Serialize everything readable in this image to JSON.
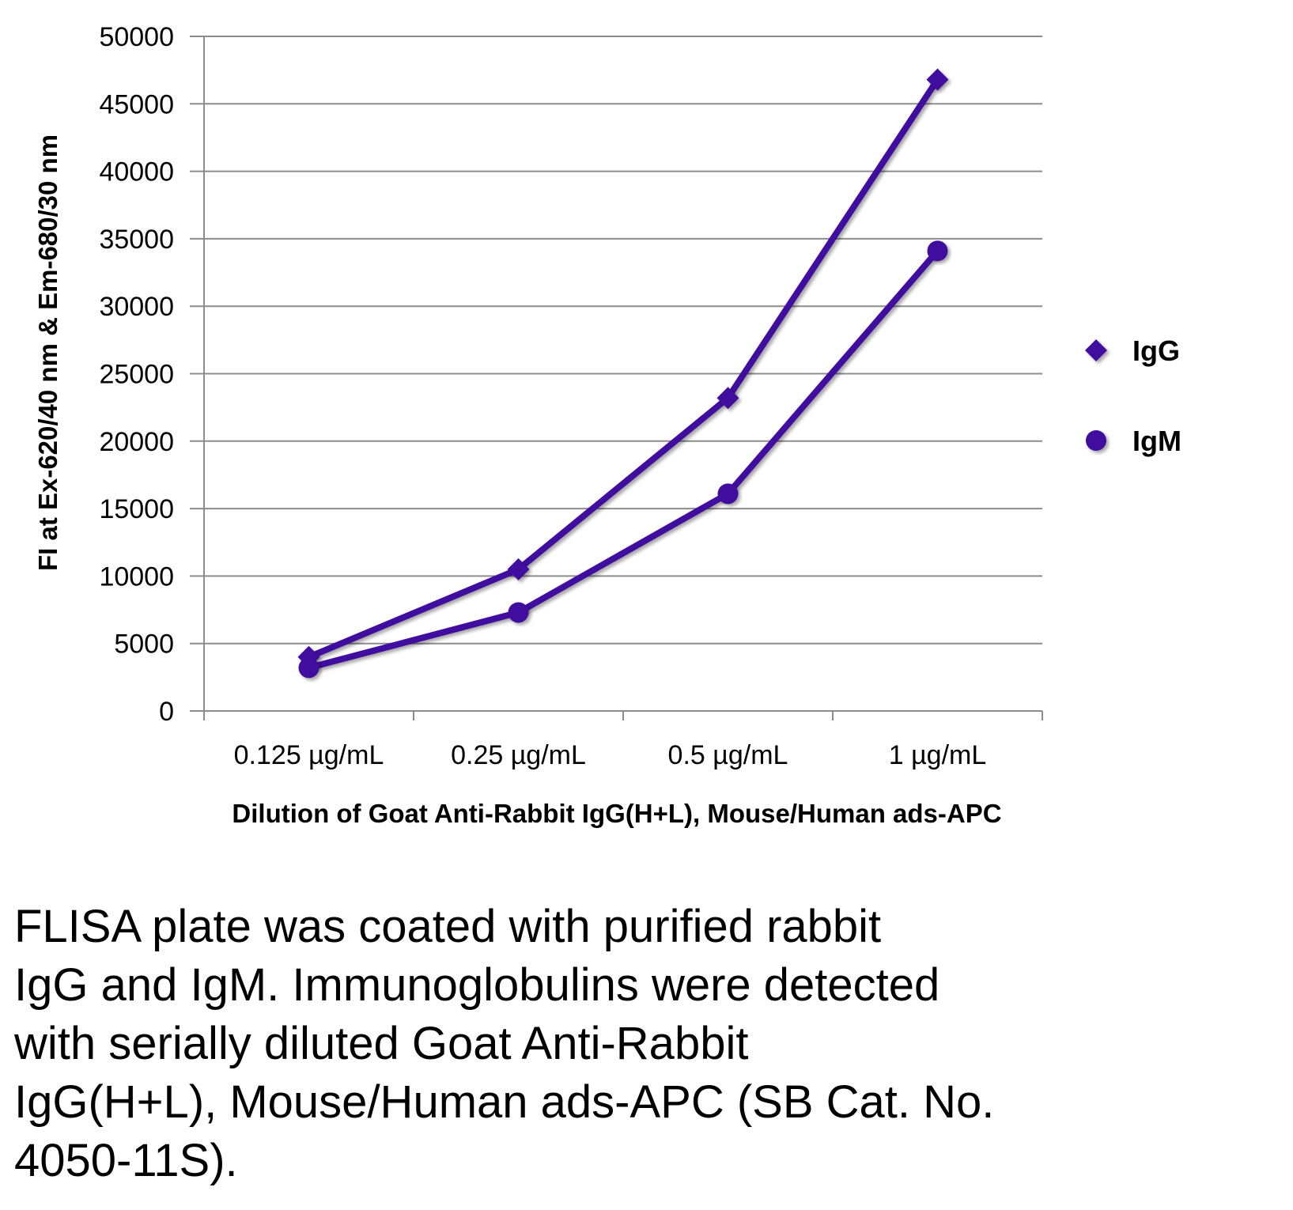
{
  "chart_data": {
    "type": "line",
    "categories": [
      "0.125 µg/mL",
      "0.25 µg/mL",
      "0.5 µg/mL",
      "1 µg/mL"
    ],
    "series": [
      {
        "name": "IgG",
        "marker": "diamond",
        "values": [
          4000,
          10500,
          23200,
          46800
        ]
      },
      {
        "name": "IgM",
        "marker": "circle",
        "values": [
          3200,
          7300,
          16100,
          34100
        ]
      }
    ],
    "xlabel": "Dilution of Goat Anti-Rabbit IgG(H+L), Mouse/Human ads-APC",
    "ylabel": "FI at Ex-620/40 nm & Em-680/30 nm",
    "ylim": [
      0,
      50000
    ],
    "yticks": [
      "0",
      "5000",
      "10000",
      "15000",
      "20000",
      "25000",
      "30000",
      "35000",
      "40000",
      "45000",
      "50000"
    ],
    "grid": true,
    "legend_position": "right",
    "line_color": "#3F0D9E"
  },
  "caption": "FLISA plate was coated with purified rabbit\nIgG and IgM.  Immunoglobulins were detected\nwith serially diluted Goat Anti-Rabbit\nIgG(H+L), Mouse/Human ads-APC (SB Cat. No.\n4050-11S)."
}
